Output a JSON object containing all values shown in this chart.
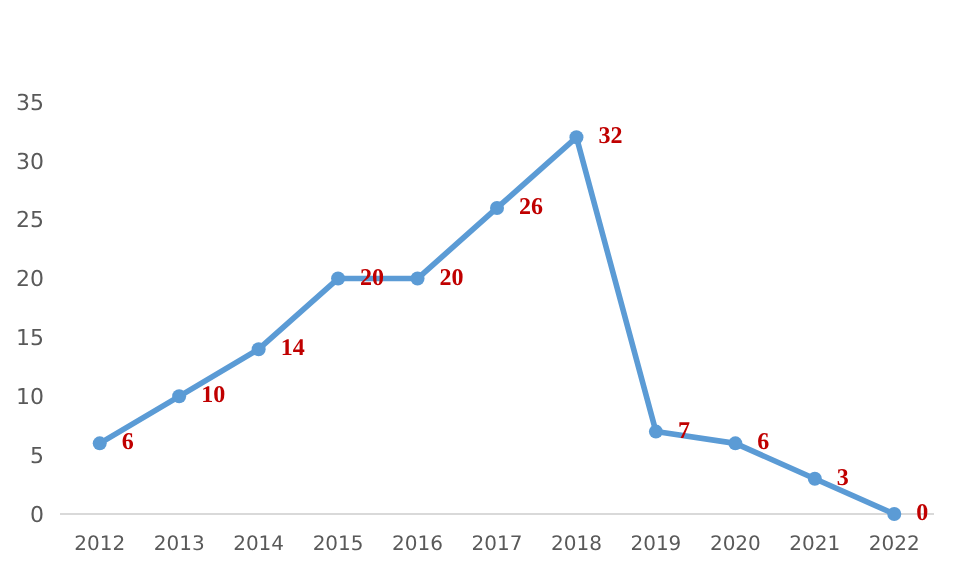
{
  "chart_data": {
    "type": "line",
    "categories": [
      "2012",
      "2013",
      "2014",
      "2015",
      "2016",
      "2017",
      "2018",
      "2019",
      "2020",
      "2021",
      "2022"
    ],
    "series": [
      {
        "color": "#5b9bd5",
        "values": [
          6,
          10,
          14,
          20,
          20,
          26,
          32,
          7,
          6,
          3,
          0
        ]
      }
    ],
    "ylim": [
      0,
      35
    ],
    "yticks": [
      0,
      5,
      10,
      15,
      20,
      25,
      30,
      35
    ],
    "grid": false,
    "marker": "circle",
    "line_style": "solid",
    "data_labels": true
  }
}
